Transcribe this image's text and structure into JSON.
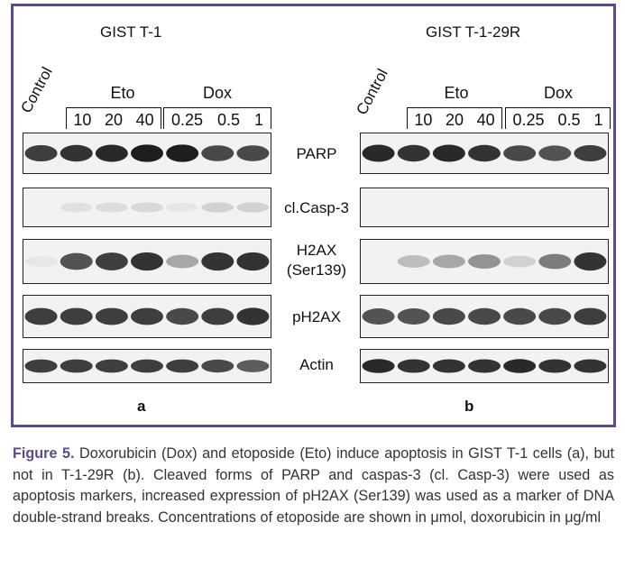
{
  "figure": {
    "panel_a": {
      "title": "GIST T-1",
      "control": "Control",
      "eto": {
        "label": "Eto",
        "concs": [
          "10",
          "20",
          "40"
        ]
      },
      "dox": {
        "label": "Dox",
        "concs": [
          "0.25",
          "0.5",
          "1"
        ]
      },
      "letter": "a"
    },
    "panel_b": {
      "title": "GIST T-1-29R",
      "control": "Control",
      "eto": {
        "label": "Eto",
        "concs": [
          "10",
          "20",
          "40"
        ]
      },
      "dox": {
        "label": "Dox",
        "concs": [
          "0.25",
          "0.5",
          "1"
        ]
      },
      "letter": "b"
    },
    "markers": [
      {
        "line1": "PARP",
        "line2": ""
      },
      {
        "line1": "cl.Casp-3",
        "line2": ""
      },
      {
        "line1": "H2AX",
        "line2": "(Ser139)"
      },
      {
        "line1": "pH2AX",
        "line2": ""
      },
      {
        "line1": "Actin",
        "line2": ""
      }
    ],
    "band_intensity_a": [
      [
        0.85,
        0.9,
        0.95,
        1.0,
        1.0,
        0.8,
        0.8
      ],
      [
        0.0,
        0.08,
        0.1,
        0.12,
        0.05,
        0.15,
        0.15
      ],
      [
        0.05,
        0.75,
        0.85,
        0.9,
        0.35,
        0.9,
        0.9
      ],
      [
        0.85,
        0.85,
        0.85,
        0.85,
        0.8,
        0.85,
        0.9
      ],
      [
        0.85,
        0.85,
        0.85,
        0.85,
        0.85,
        0.8,
        0.7
      ]
    ],
    "band_intensity_b": [
      [
        0.95,
        0.9,
        0.95,
        0.9,
        0.8,
        0.75,
        0.85
      ],
      [
        0.0,
        0.0,
        0.0,
        0.0,
        0.0,
        0.0,
        0.0
      ],
      [
        0.0,
        0.25,
        0.35,
        0.45,
        0.15,
        0.55,
        0.9
      ],
      [
        0.75,
        0.75,
        0.8,
        0.8,
        0.8,
        0.8,
        0.85
      ],
      [
        0.95,
        0.9,
        0.9,
        0.9,
        0.95,
        0.9,
        0.9
      ]
    ],
    "band_color": "#1e1e1e"
  },
  "caption": {
    "label": "Figure 5.",
    "text": " Doxorubicin (Dox) and etoposide (Eto) induce apoptosis in GIST T-1 cells (a), but not in T-1-29R (b). Cleaved forms of PARP and caspas-3 (cl. Casp-3) were used as apoptosis markers, increased expression of pH2AX (Ser139) was used as a marker of DNA double-strand breaks. Concentrations of etoposide are shown in μmol, doxorubicin in μg/ml"
  },
  "colors": {
    "frame": "#5b4a91",
    "caption_label": "#5b4a91"
  }
}
